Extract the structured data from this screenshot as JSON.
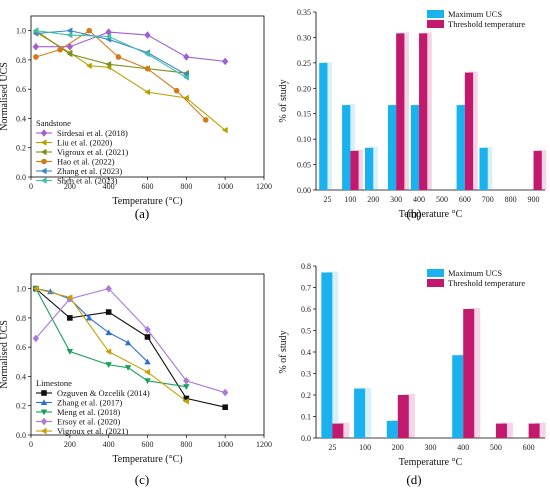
{
  "panel_labels": [
    "(a)",
    "(b)",
    "(c)",
    "(d)"
  ],
  "colors": {
    "sirdesai": "#a05fd0",
    "liu": "#b3a300",
    "vigroux": "#7a8f1a",
    "hao": "#d07a1a",
    "zhang2023": "#3c86c6",
    "shen": "#3fbfa8",
    "ozguven": "#111111",
    "zhang2017": "#2e6fd4",
    "meng": "#1aa05a",
    "ersoy": "#a97ad8",
    "vigroux2021": "#c8a000",
    "max_ucs": "#1ab2ee",
    "threshold": "#c2186d"
  },
  "chart_data": [
    {
      "type": "line",
      "panel": "(a)",
      "xlabel": "Temperature (°C)",
      "ylabel": "Normalised UCS",
      "xlim": [
        0,
        1200
      ],
      "ylim": [
        0,
        1.1
      ],
      "xticks": [
        0,
        200,
        400,
        600,
        800,
        1000,
        1200
      ],
      "yticks": [
        0.0,
        0.2,
        0.4,
        0.6,
        0.8,
        1.0
      ],
      "legend_title": "Sandstone",
      "legend_position": "bottom-left",
      "series": [
        {
          "name": "Sirdesai et al. (2018)",
          "color_key": "sirdesai",
          "marker": "diamond",
          "x": [
            25,
            200,
            400,
            600,
            800,
            1000
          ],
          "y": [
            0.89,
            0.89,
            0.99,
            0.97,
            0.82,
            0.79
          ]
        },
        {
          "name": "Liu et al. (2020)",
          "color_key": "liu",
          "marker": "triangle-left",
          "x": [
            25,
            200,
            300,
            400,
            600,
            800,
            1000
          ],
          "y": [
            0.99,
            0.85,
            0.76,
            0.75,
            0.58,
            0.54,
            0.32
          ]
        },
        {
          "name": "Vigroux et al. (2021)",
          "color_key": "vigroux",
          "marker": "triangle-left",
          "x": [
            25,
            200,
            400,
            600,
            800
          ],
          "y": [
            1.0,
            0.84,
            0.77,
            0.74,
            0.71
          ]
        },
        {
          "name": "Hao et al. (2022)",
          "color_key": "hao",
          "marker": "circle",
          "x": [
            25,
            150,
            300,
            450,
            600,
            750,
            900
          ],
          "y": [
            0.82,
            0.87,
            1.0,
            0.82,
            0.74,
            0.59,
            0.39
          ]
        },
        {
          "name": "Zhang et al. (2023)",
          "color_key": "zhang2023",
          "marker": "triangle-left",
          "x": [
            25,
            200,
            400,
            600,
            800
          ],
          "y": [
            0.98,
            1.0,
            0.94,
            0.85,
            0.7
          ]
        },
        {
          "name": "Shen et al. (2023)",
          "color_key": "shen",
          "marker": "triangle-left",
          "x": [
            25,
            200,
            400,
            600,
            800
          ],
          "y": [
            1.0,
            0.97,
            0.96,
            0.84,
            0.68
          ]
        }
      ]
    },
    {
      "type": "bar",
      "panel": "(b)",
      "xlabel": "Temperature °C",
      "ylabel": "% of study",
      "categories": [
        "25",
        "100",
        "200",
        "300",
        "400",
        "500",
        "600",
        "700",
        "800",
        "900"
      ],
      "ylim": [
        0,
        0.35
      ],
      "yticks": [
        0.0,
        0.05,
        0.1,
        0.15,
        0.2,
        0.25,
        0.3,
        0.35
      ],
      "legend_position": "top-right",
      "series": [
        {
          "name": "Maximum UCS",
          "color_key": "max_ucs",
          "values": [
            0.25,
            0.167,
            0.083,
            0.167,
            0.167,
            0,
            0.167,
            0.083,
            0,
            0
          ]
        },
        {
          "name": "Threshold temperature",
          "color_key": "threshold",
          "values": [
            0,
            0.077,
            0,
            0.308,
            0.308,
            0,
            0.231,
            0,
            0,
            0.077
          ]
        }
      ]
    },
    {
      "type": "line",
      "panel": "(c)",
      "xlabel": "Temperature (°C)",
      "ylabel": "Normalised UCS",
      "xlim": [
        0,
        1200
      ],
      "ylim": [
        0,
        1.1
      ],
      "xticks": [
        0,
        200,
        400,
        600,
        800,
        1000,
        1200
      ],
      "yticks": [
        0.0,
        0.2,
        0.4,
        0.6,
        0.8,
        1.0
      ],
      "legend_title": "Limestone",
      "legend_position": "bottom-left",
      "series": [
        {
          "name": "Ozguven & Ozcelik (2014)",
          "color_key": "ozguven",
          "marker": "square",
          "x": [
            25,
            200,
            400,
            600,
            800,
            1000
          ],
          "y": [
            1.0,
            0.8,
            0.84,
            0.67,
            0.25,
            0.19
          ]
        },
        {
          "name": "Zhang et al. (2017)",
          "color_key": "zhang2017",
          "marker": "triangle-up",
          "x": [
            25,
            100,
            200,
            300,
            400,
            500,
            600
          ],
          "y": [
            1.0,
            0.98,
            0.93,
            0.8,
            0.7,
            0.63,
            0.5
          ]
        },
        {
          "name": "Meng et al. (2018)",
          "color_key": "meng",
          "marker": "triangle-down",
          "x": [
            25,
            200,
            400,
            500,
            600,
            800
          ],
          "y": [
            1.0,
            0.57,
            0.48,
            0.46,
            0.37,
            0.33
          ]
        },
        {
          "name": "Ersoy et al. (2020)",
          "color_key": "ersoy",
          "marker": "diamond",
          "x": [
            25,
            200,
            400,
            600,
            800,
            1000
          ],
          "y": [
            0.66,
            0.93,
            1.0,
            0.72,
            0.37,
            0.29
          ]
        },
        {
          "name": "Vigroux et al. (2021)",
          "color_key": "vigroux2021",
          "marker": "triangle-left",
          "x": [
            25,
            200,
            400,
            600,
            800
          ],
          "y": [
            1.0,
            0.94,
            0.57,
            0.43,
            0.23
          ]
        }
      ]
    },
    {
      "type": "bar",
      "panel": "(d)",
      "xlabel": "Temperature °C",
      "ylabel": "% of study",
      "categories": [
        "25",
        "100",
        "200",
        "300",
        "400",
        "500",
        "600"
      ],
      "ylim": [
        0,
        0.8
      ],
      "yticks": [
        0.0,
        0.1,
        0.2,
        0.3,
        0.4,
        0.5,
        0.6,
        0.7,
        0.8
      ],
      "legend_position": "top-right",
      "series": [
        {
          "name": "Maximum UCS",
          "color_key": "max_ucs",
          "values": [
            0.77,
            0.23,
            0.08,
            0,
            0.385,
            0,
            0
          ]
        },
        {
          "name": "Threshold temperature",
          "color_key": "threshold",
          "values": [
            0.067,
            0,
            0.2,
            0,
            0.6,
            0.067,
            0.067
          ]
        }
      ]
    }
  ]
}
